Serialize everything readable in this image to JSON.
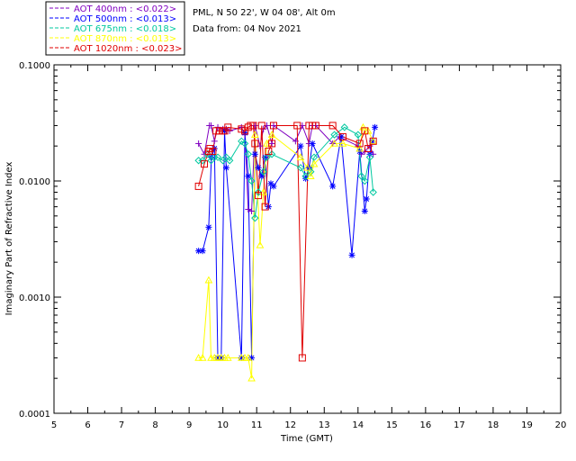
{
  "header": {
    "site": "PML, N 50 22', W 04 08', Alt 0m",
    "date": "Data from: 04 Nov 2021"
  },
  "chart_data": {
    "type": "scatter",
    "title": "",
    "xlabel": "Time (GMT)",
    "ylabel": "Imaginary Part of Refractive Index",
    "xlim": [
      5,
      20
    ],
    "ylim": [
      0.0001,
      0.1
    ],
    "yscale": "log",
    "xticks": [
      "5",
      "6",
      "7",
      "8",
      "9",
      "10",
      "11",
      "12",
      "13",
      "14",
      "15",
      "16",
      "17",
      "18",
      "19",
      "20"
    ],
    "yticks": [
      "0.0001",
      "0.0010",
      "0.0100",
      "0.1000"
    ],
    "legend_position": "top-left",
    "series": [
      {
        "name": "400nm",
        "legend": "AOT  400nm : <0.022>",
        "color": "#8000c0",
        "marker": "plus",
        "x": [
          9.28,
          9.45,
          9.6,
          9.65,
          9.75,
          9.85,
          10.0,
          10.1,
          10.2,
          10.55,
          10.65,
          10.75,
          10.85,
          10.95,
          11.1,
          11.2,
          11.3,
          11.45,
          11.5,
          12.15,
          12.35,
          12.55,
          12.65,
          12.75,
          13.25,
          13.45,
          14.0,
          14.1,
          14.2,
          14.35,
          14.45
        ],
        "y": [
          0.021,
          0.017,
          0.03,
          0.03,
          0.022,
          0.029,
          0.028,
          0.028,
          0.027,
          0.029,
          0.025,
          0.0057,
          0.0055,
          0.03,
          0.02,
          0.028,
          0.03,
          0.021,
          0.03,
          0.022,
          0.03,
          0.021,
          0.03,
          0.03,
          0.021,
          0.024,
          0.02,
          0.017,
          0.018,
          0.02,
          0.017
        ]
      },
      {
        "name": "500nm",
        "legend": "AOT  500nm : <0.013>",
        "color": "#0000ff",
        "marker": "asterisk",
        "x": [
          9.28,
          9.4,
          9.58,
          9.66,
          9.75,
          9.85,
          9.95,
          10.05,
          10.1,
          10.55,
          10.65,
          10.75,
          10.85,
          10.95,
          11.05,
          11.15,
          11.25,
          11.35,
          11.42,
          11.5,
          12.3,
          12.45,
          12.55,
          12.65,
          13.25,
          13.5,
          13.82,
          14.05,
          14.2,
          14.25,
          14.35,
          14.42,
          14.5
        ],
        "y": [
          0.0025,
          0.0025,
          0.004,
          0.016,
          0.019,
          0.0003,
          0.0003,
          0.027,
          0.013,
          0.0003,
          0.026,
          0.011,
          0.0003,
          0.017,
          0.013,
          0.011,
          0.016,
          0.006,
          0.0095,
          0.009,
          0.02,
          0.0105,
          0.013,
          0.021,
          0.009,
          0.024,
          0.0023,
          0.018,
          0.0055,
          0.007,
          0.017,
          0.022,
          0.029
        ]
      },
      {
        "name": "675nm",
        "legend": "AOT  675nm : <0.018>",
        "color": "#00c8a0",
        "marker": "diamond",
        "x": [
          9.28,
          9.4,
          9.55,
          9.65,
          9.75,
          9.85,
          10.0,
          10.1,
          10.2,
          10.55,
          10.65,
          10.75,
          10.85,
          10.95,
          11.05,
          11.2,
          11.3,
          11.45,
          12.3,
          12.45,
          12.6,
          12.7,
          13.3,
          13.6,
          14.0,
          14.1,
          14.2,
          14.35,
          14.45
        ],
        "y": [
          0.015,
          0.015,
          0.017,
          0.015,
          0.016,
          0.016,
          0.015,
          0.016,
          0.015,
          0.022,
          0.021,
          0.017,
          0.01,
          0.0048,
          0.008,
          0.012,
          0.016,
          0.017,
          0.013,
          0.011,
          0.012,
          0.016,
          0.025,
          0.029,
          0.025,
          0.011,
          0.01,
          0.016,
          0.008
        ]
      },
      {
        "name": "870nm",
        "legend": "AOT  870nm : <0.013>",
        "color": "#ffff00",
        "marker": "triangle",
        "x": [
          9.28,
          9.4,
          9.58,
          9.65,
          9.75,
          9.85,
          9.95,
          10.05,
          10.15,
          10.55,
          10.65,
          10.75,
          10.85,
          10.95,
          11.1,
          11.2,
          11.3,
          11.45,
          12.3,
          12.5,
          12.6,
          12.7,
          13.3,
          13.55,
          14.05,
          14.15,
          14.3,
          14.45
        ],
        "y": [
          0.0003,
          0.0003,
          0.0014,
          0.0003,
          0.0003,
          0.0003,
          0.0003,
          0.0003,
          0.0003,
          0.0003,
          0.0003,
          0.0003,
          0.0002,
          0.025,
          0.0028,
          0.008,
          0.021,
          0.025,
          0.016,
          0.013,
          0.011,
          0.014,
          0.021,
          0.021,
          0.019,
          0.029,
          0.027,
          0.022
        ]
      },
      {
        "name": "1020nm",
        "legend": "AOT 1020nm : <0.023>",
        "color": "#e00000",
        "marker": "square",
        "x": [
          9.28,
          9.45,
          9.58,
          9.62,
          9.7,
          9.8,
          9.9,
          10.0,
          10.05,
          10.15,
          10.55,
          10.65,
          10.75,
          10.82,
          10.9,
          10.95,
          11.05,
          11.15,
          11.25,
          11.35,
          11.45,
          11.5,
          12.2,
          12.35,
          12.55,
          12.65,
          12.75,
          13.25,
          13.55,
          14.05,
          14.2,
          14.3,
          14.45
        ],
        "y": [
          0.009,
          0.014,
          0.018,
          0.019,
          0.018,
          0.027,
          0.027,
          0.027,
          0.027,
          0.029,
          0.028,
          0.027,
          0.029,
          0.03,
          0.03,
          0.021,
          0.0075,
          0.03,
          0.006,
          0.018,
          0.021,
          0.03,
          0.03,
          0.0003,
          0.03,
          0.03,
          0.03,
          0.03,
          0.024,
          0.021,
          0.027,
          0.019,
          0.022
        ]
      }
    ]
  }
}
